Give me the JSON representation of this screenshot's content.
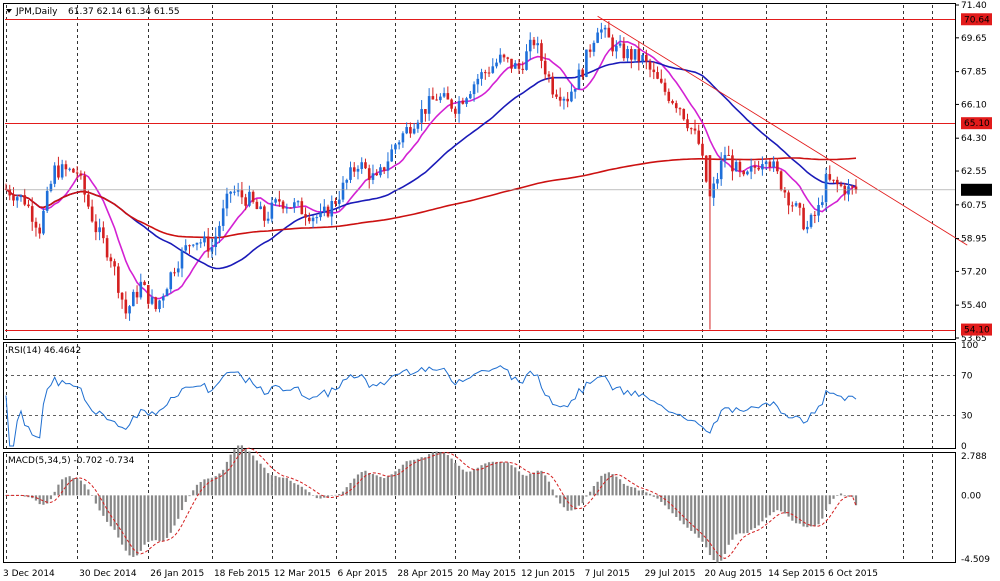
{
  "header": {
    "symbol_timeframe": "JPM,Daily",
    "ohlc_readout": "61.37 62.14 61.34 61.55",
    "menu_icon": "triangle-down-icon"
  },
  "chart_data": [
    {
      "type": "candlestick",
      "title": "JPM,Daily",
      "ylim": [
        53.65,
        71.4
      ],
      "yticks": [
        "71.40",
        "69.65",
        "67.85",
        "66.10",
        "64.30",
        "62.55",
        "60.75",
        "58.95",
        "57.20",
        "55.40",
        "53.65"
      ],
      "xticks": [
        "3 Dec 2014",
        "30 Dec 2014",
        "26 Jan 2015",
        "18 Feb 2015",
        "12 Mar 2015",
        "6 Apr 2015",
        "28 Apr 2015",
        "20 May 2015",
        "12 Jun 2015",
        "7 Jul 2015",
        "29 Jul 2015",
        "20 Aug 2015",
        "14 Sep 2015",
        "6 Oct 2015"
      ],
      "last_price": 61.55,
      "horizontal_levels": [
        {
          "value": 70.64,
          "label": "70.64"
        },
        {
          "value": 65.1,
          "label": "65.10"
        },
        {
          "value": 54.1,
          "label": "54.10"
        }
      ],
      "trendline": {
        "from": {
          "x": "13 Jul 2015",
          "y": 70.8
        },
        "to": {
          "x": "21 Oct 2015",
          "y": 58.6
        }
      },
      "price_anchors": [
        [
          "3 Dec 2014",
          61.6
        ],
        [
          "10 Dec 2014",
          61.0
        ],
        [
          "16 Dec 2014",
          59.5
        ],
        [
          "22 Dec 2014",
          62.6
        ],
        [
          "30 Dec 2014",
          62.5
        ],
        [
          "6 Jan 2015",
          59.5
        ],
        [
          "12 Jan 2015",
          58.0
        ],
        [
          "16 Jan 2015",
          55.0
        ],
        [
          "22 Jan 2015",
          56.5
        ],
        [
          "28 Jan 2015",
          55.2
        ],
        [
          "4 Feb 2015",
          57.5
        ],
        [
          "11 Feb 2015",
          59.0
        ],
        [
          "18 Feb 2015",
          58.5
        ],
        [
          "25 Feb 2015",
          61.5
        ],
        [
          "4 Mar 2015",
          61.0
        ],
        [
          "10 Mar 2015",
          60.0
        ],
        [
          "16 Mar 2015",
          61.0
        ],
        [
          "24 Mar 2015",
          60.5
        ],
        [
          "31 Mar 2015",
          60.0
        ],
        [
          "6 Apr 2015",
          61.0
        ],
        [
          "14 Apr 2015",
          63.0
        ],
        [
          "21 Apr 2015",
          62.0
        ],
        [
          "28 Apr 2015",
          64.0
        ],
        [
          "6 May 2015",
          65.5
        ],
        [
          "13 May 2015",
          66.5
        ],
        [
          "20 May 2015",
          66.0
        ],
        [
          "28 May 2015",
          67.5
        ],
        [
          "5 Jun 2015",
          68.5
        ],
        [
          "12 Jun 2015",
          68.0
        ],
        [
          "18 Jun 2015",
          69.5
        ],
        [
          "25 Jun 2015",
          67.0
        ],
        [
          "1 Jul 2015",
          66.5
        ],
        [
          "7 Jul 2015",
          68.0
        ],
        [
          "13 Jul 2015",
          70.3
        ],
        [
          "20 Jul 2015",
          69.0
        ],
        [
          "29 Jul 2015",
          68.5
        ],
        [
          "5 Aug 2015",
          67.0
        ],
        [
          "12 Aug 2015",
          66.0
        ],
        [
          "19 Aug 2015",
          64.0
        ],
        [
          "24 Aug 2015",
          61.0
        ],
        [
          "28 Aug 2015",
          63.5
        ],
        [
          "4 Sep 2015",
          62.0
        ],
        [
          "14 Sep 2015",
          63.5
        ],
        [
          "21 Sep 2015",
          61.5
        ],
        [
          "29 Sep 2015",
          59.5
        ],
        [
          "2 Oct 2015",
          60.5
        ],
        [
          "6 Oct 2015",
          62.0
        ],
        [
          "14 Oct 2015",
          61.55
        ]
      ],
      "indicators": [
        {
          "type": "moving_average",
          "color": "#d321d3"
        },
        {
          "type": "moving_average",
          "color": "#1a1ab8"
        },
        {
          "type": "moving_average",
          "color": "#cc1111"
        }
      ],
      "colors": {
        "bull": "#1e6fd9",
        "bear": "#d42020",
        "level_line": "#e21b1b",
        "label_bg": "#e21b1b"
      },
      "grid": true
    },
    {
      "type": "line",
      "title": "RSI(14) 46.4642",
      "ylim": [
        0,
        100
      ],
      "yticks": [
        "100",
        "70",
        "30",
        "0"
      ],
      "levels": [
        70,
        30
      ],
      "color": "#1f6fd0",
      "last_value": 46.4642
    },
    {
      "type": "bar",
      "title": "MACD(5,34,5) -0.702 -0.734",
      "ylim": [
        -4.509,
        2.788
      ],
      "yticks": [
        "2.788",
        "0.00",
        "-4.509"
      ],
      "macd": -0.702,
      "signal": -0.734,
      "colors": {
        "bars": "#888888",
        "signal": "#d42020"
      }
    }
  ]
}
